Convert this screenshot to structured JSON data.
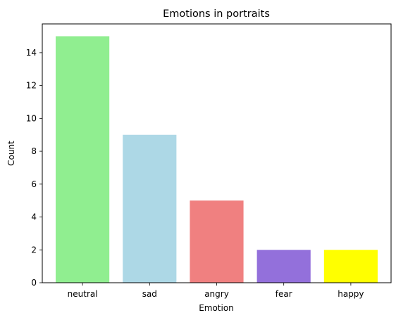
{
  "chart_data": {
    "type": "bar",
    "title": "Emotions in portraits",
    "xlabel": "Emotion",
    "ylabel": "Count",
    "categories": [
      "neutral",
      "sad",
      "angry",
      "fear",
      "happy"
    ],
    "values": [
      15,
      9,
      5,
      2,
      2
    ],
    "colors": [
      "#90ee90",
      "#add8e6",
      "#f08080",
      "#9370db",
      "#ffff00"
    ],
    "ylim": [
      0,
      15.75
    ],
    "yticks": [
      0,
      2,
      4,
      6,
      8,
      10,
      12,
      14
    ],
    "grid": false,
    "legend": "none"
  }
}
